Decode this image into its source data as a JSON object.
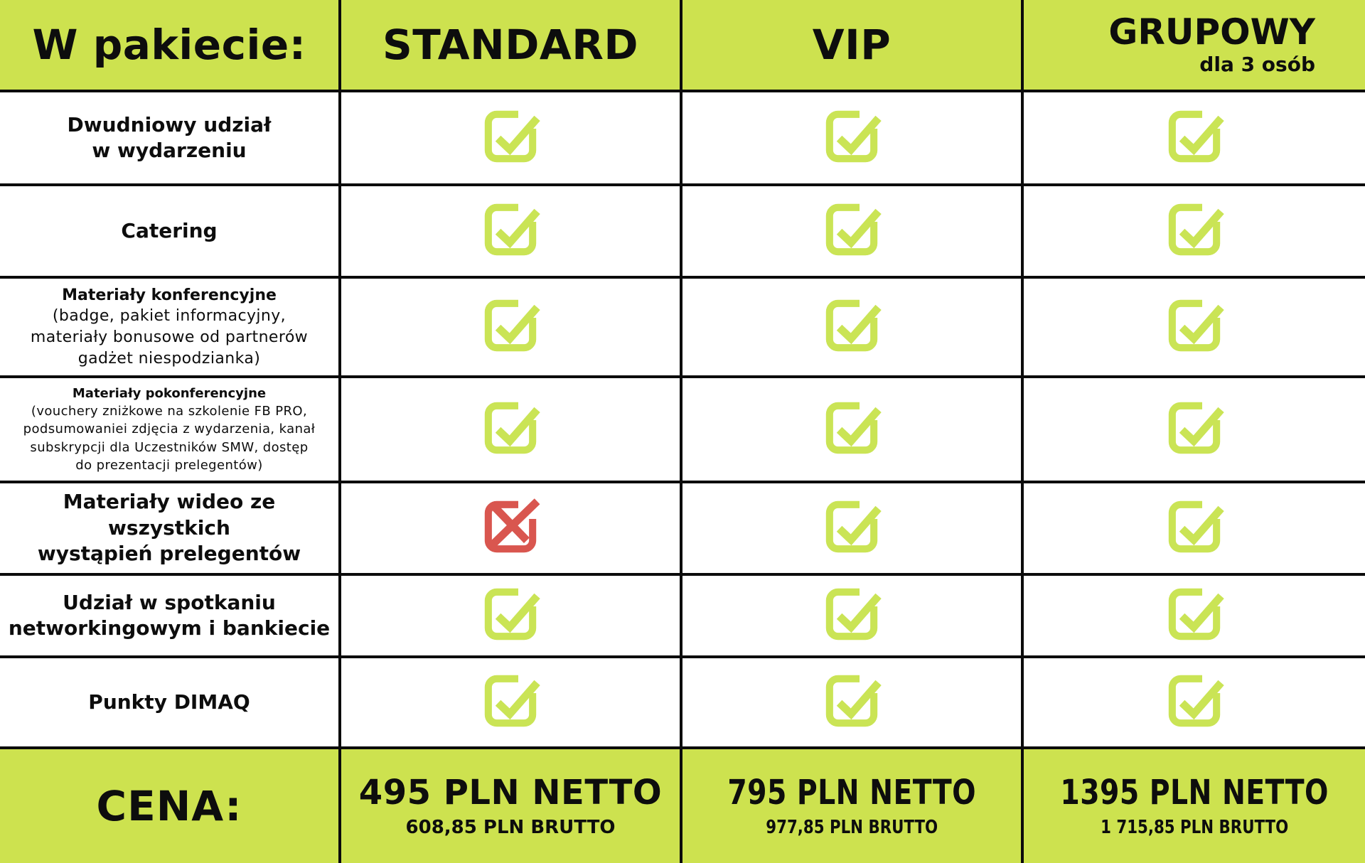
{
  "chart_data": {
    "type": "table",
    "header": {
      "feature_column_label": "W pakiecie:",
      "package_columns": [
        {
          "name": "STANDARD",
          "subtitle": ""
        },
        {
          "name": "VIP",
          "subtitle": ""
        },
        {
          "name": "GRUPOWY",
          "subtitle": "dla 3 osób"
        }
      ]
    },
    "rows": [
      {
        "label": "Dwudniowy udział\nw wydarzeniu",
        "sublabel": "",
        "marks": [
          "check",
          "check",
          "check"
        ]
      },
      {
        "label": "Catering",
        "sublabel": "",
        "marks": [
          "check",
          "check",
          "check"
        ]
      },
      {
        "label": "Materiały konferencyjne",
        "sublabel": "(badge, pakiet informacyjny,\nmateriały bonusowe od partnerów\ngadżet niespodzianka)",
        "marks": [
          "check",
          "check",
          "check"
        ]
      },
      {
        "label": "Materiały pokonferencyjne",
        "sublabel": "(vouchery zniżkowe na szkolenie FB PRO,\npodsumowaniei zdjęcia z wydarzenia, kanał\nsubskrypcji dla Uczestników SMW, dostęp\ndo prezentacji prelegentów)",
        "marks": [
          "check",
          "check",
          "check"
        ]
      },
      {
        "label": "Materiały wideo ze wszystkich\nwystąpień prelegentów",
        "sublabel": "",
        "marks": [
          "cross",
          "check",
          "check"
        ]
      },
      {
        "label": "Udział w spotkaniu\nnetworkingowym i bankiecie",
        "sublabel": "",
        "marks": [
          "check",
          "check",
          "check"
        ]
      },
      {
        "label": "Punkty DIMAQ",
        "sublabel": "",
        "marks": [
          "check",
          "check",
          "check"
        ]
      }
    ],
    "price_row": {
      "label": "CENA:",
      "prices": [
        {
          "netto": "495 PLN NETTO",
          "brutto": "608,85 PLN BRUTTO"
        },
        {
          "netto": "795 PLN NETTO",
          "brutto": "977,85 PLN BRUTTO"
        },
        {
          "netto": "1395 PLN NETTO",
          "brutto": "1 715,85 PLN BRUTTO"
        }
      ]
    }
  },
  "icons": {
    "check": "checkbox-check-icon",
    "cross": "checkbox-cross-icon"
  },
  "colors": {
    "accent_green": "#cde24f",
    "check_green": "#cae455",
    "cross_red": "#d9564f",
    "grid_line_black": "#0b0b0b",
    "text_black": "#0d0d0d"
  }
}
